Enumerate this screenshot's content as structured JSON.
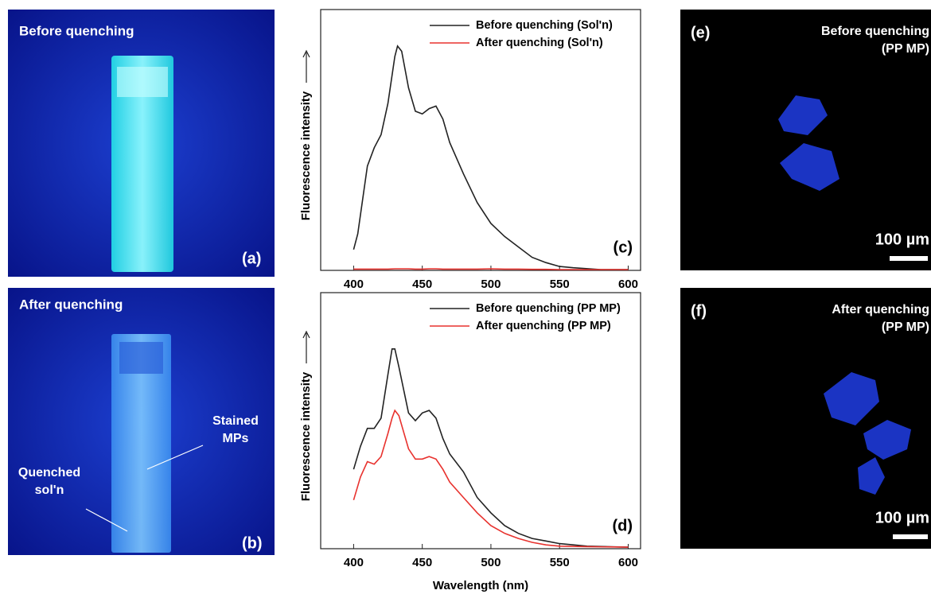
{
  "photos": [
    {
      "title": "Before quenching",
      "panel": "(a)"
    },
    {
      "title": "After quenching",
      "panel": "(b)",
      "annotations": [
        [
          "Stained",
          "MPs"
        ],
        [
          "Quenched",
          "sol'n"
        ]
      ]
    }
  ],
  "micrographs": [
    {
      "panel": "(e)",
      "title": [
        "Before quenching",
        "(PP MP)"
      ],
      "scale": "100 µm"
    },
    {
      "panel": "(f)",
      "title": [
        "After quenching",
        "(PP MP)"
      ],
      "scale": "100 µm"
    }
  ],
  "chart_data": [
    {
      "type": "line",
      "panel": "(c)",
      "y_label": "Fluorescence intensity",
      "x": [
        400,
        403,
        410,
        415,
        420,
        425,
        430,
        432,
        435,
        440,
        445,
        450,
        455,
        460,
        465,
        470,
        480,
        490,
        500,
        510,
        520,
        530,
        540,
        550,
        560,
        580,
        600
      ],
      "series": [
        {
          "name": "Before quenching (Sol'n)",
          "color": "#222222",
          "values": [
            8,
            14,
            40,
            47,
            52,
            64,
            82,
            86,
            84,
            70,
            61,
            60,
            62,
            63,
            58,
            49,
            37,
            26,
            18,
            13,
            9,
            5,
            3,
            1.5,
            1,
            0.3,
            0.3
          ]
        },
        {
          "name": "After quenching (Sol'n)",
          "color": "#e8322e",
          "values": [
            0.5,
            0.5,
            0.5,
            0.5,
            0.5,
            0.5,
            0.6,
            0.6,
            0.6,
            0.6,
            0.5,
            0.5,
            0.6,
            0.6,
            0.5,
            0.5,
            0.5,
            0.5,
            0.6,
            0.5,
            0.5,
            0.4,
            0.4,
            0.3,
            0.3,
            0.3,
            0.3
          ]
        }
      ],
      "xlim": [
        376,
        609
      ],
      "xticks": [
        400,
        450,
        500,
        550,
        600
      ],
      "ylim": [
        0,
        100
      ],
      "legend": "upper right"
    },
    {
      "type": "line",
      "panel": "(d)",
      "y_label": "Fluorescence intensity",
      "x_label": "Wavelength (nm)",
      "x": [
        400,
        405,
        410,
        415,
        420,
        425,
        428,
        430,
        433,
        440,
        445,
        450,
        455,
        460,
        465,
        470,
        480,
        490,
        500,
        510,
        520,
        530,
        540,
        550,
        570,
        600
      ],
      "series": [
        {
          "name": "Before quenching (PP MP)",
          "color": "#222222",
          "values": [
            31,
            40,
            47,
            47,
            51,
            68,
            78,
            78,
            71,
            53,
            50,
            53,
            54,
            51,
            43,
            37,
            30,
            20,
            14,
            9,
            6,
            4,
            3,
            2,
            1,
            0.6
          ]
        },
        {
          "name": "After quenching (PP MP)",
          "color": "#e8322e",
          "values": [
            19,
            28,
            34,
            33,
            36,
            45,
            51,
            54,
            52,
            39,
            35,
            35,
            36,
            35,
            31,
            26,
            20,
            14,
            9,
            6,
            4,
            2.5,
            1.5,
            1,
            0.8,
            0.6
          ]
        }
      ],
      "xlim": [
        376,
        609
      ],
      "xticks": [
        400,
        450,
        500,
        550,
        600
      ],
      "ylim": [
        0,
        100
      ],
      "legend": "upper right"
    }
  ]
}
